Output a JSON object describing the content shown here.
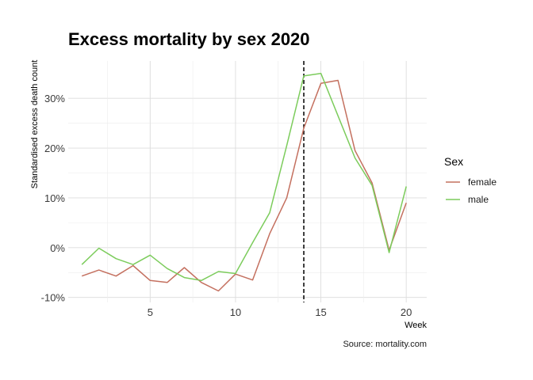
{
  "chart_data": {
    "type": "line",
    "title": "Excess mortality by sex 2020",
    "xlabel": "Week",
    "ylabel": "Standardised excess death count",
    "caption": "Source: mortality.com",
    "x": [
      1,
      2,
      3,
      4,
      5,
      6,
      7,
      8,
      9,
      10,
      11,
      12,
      13,
      14,
      15,
      16,
      17,
      18,
      19,
      20
    ],
    "xlim": [
      0.2,
      21.2
    ],
    "ylim": [
      -0.11,
      0.375
    ],
    "x_ticks": [
      5,
      10,
      15,
      20
    ],
    "x_tick_labels": [
      "5",
      "10",
      "15",
      "20"
    ],
    "y_ticks": [
      -0.1,
      0,
      0.1,
      0.2,
      0.3
    ],
    "y_tick_labels": [
      "-10%",
      "0%",
      "10%",
      "20%",
      "30%"
    ],
    "grid": true,
    "vline": {
      "x": 14,
      "style": "dashed",
      "color": "#000000"
    },
    "legend": {
      "title": "Sex",
      "position": "right"
    },
    "series": [
      {
        "name": "female",
        "color": "#c4705f",
        "values": [
          -0.057,
          -0.045,
          -0.057,
          -0.036,
          -0.066,
          -0.07,
          -0.04,
          -0.07,
          -0.087,
          -0.053,
          -0.065,
          0.028,
          0.1,
          0.24,
          0.33,
          0.336,
          0.195,
          0.13,
          -0.005,
          0.09
        ]
      },
      {
        "name": "male",
        "color": "#7ccc5c",
        "values": [
          -0.034,
          -0.001,
          -0.022,
          -0.034,
          -0.015,
          -0.042,
          -0.06,
          -0.066,
          -0.048,
          -0.052,
          0.01,
          0.07,
          0.205,
          0.345,
          0.35,
          0.265,
          0.18,
          0.125,
          -0.01,
          0.123
        ]
      }
    ]
  }
}
